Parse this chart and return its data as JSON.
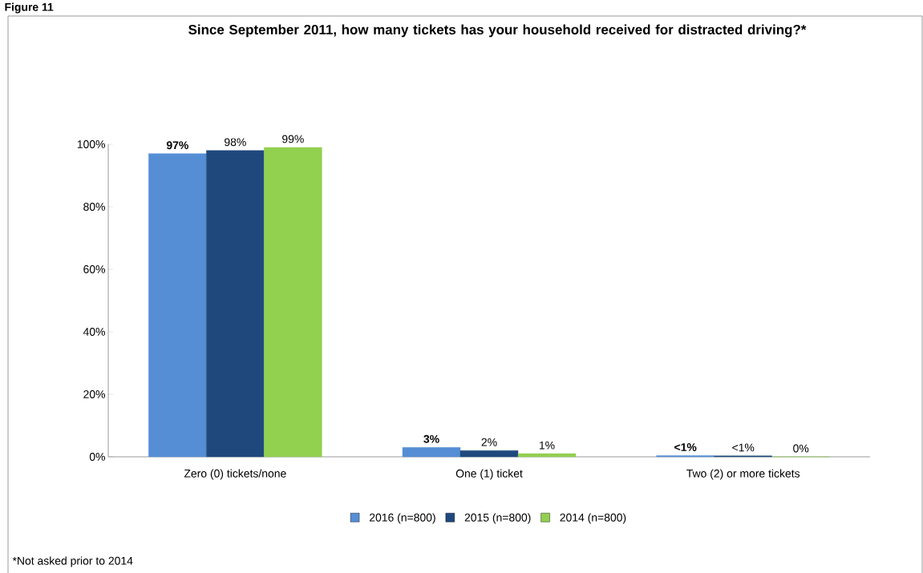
{
  "chart_data": {
    "type": "bar",
    "title": "Since September 2011, how many tickets has your household received for distracted driving?*",
    "categories": [
      "Zero (0) tickets/none",
      "One (1) ticket",
      "Two (2) or more tickets"
    ],
    "series": [
      {
        "name": "2016 (n=800)",
        "color": "#558ed5",
        "values": [
          97,
          3,
          0.4
        ],
        "value_labels": [
          "97%",
          "3%",
          "<1%"
        ]
      },
      {
        "name": "2015 (n=800)",
        "color": "#1f497d",
        "values": [
          98,
          2,
          0.3
        ],
        "value_labels": [
          "98%",
          "2%",
          "<1%"
        ]
      },
      {
        "name": "2014 (n=800)",
        "color": "#92d050",
        "values": [
          99,
          1,
          0
        ],
        "value_labels": [
          "99%",
          "1%",
          "0%"
        ]
      }
    ],
    "ylim": [
      0,
      100
    ],
    "yticks": [
      {
        "value": 0,
        "label": "0%"
      },
      {
        "value": 20,
        "label": "20%"
      },
      {
        "value": 40,
        "label": "40%"
      },
      {
        "value": 60,
        "label": "60%"
      },
      {
        "value": 80,
        "label": "80%"
      },
      {
        "value": 100,
        "label": "100%"
      }
    ],
    "legend": "bottom",
    "grid": false,
    "annotations": [
      "Figure 11",
      "*Not asked prior to 2014"
    ]
  }
}
